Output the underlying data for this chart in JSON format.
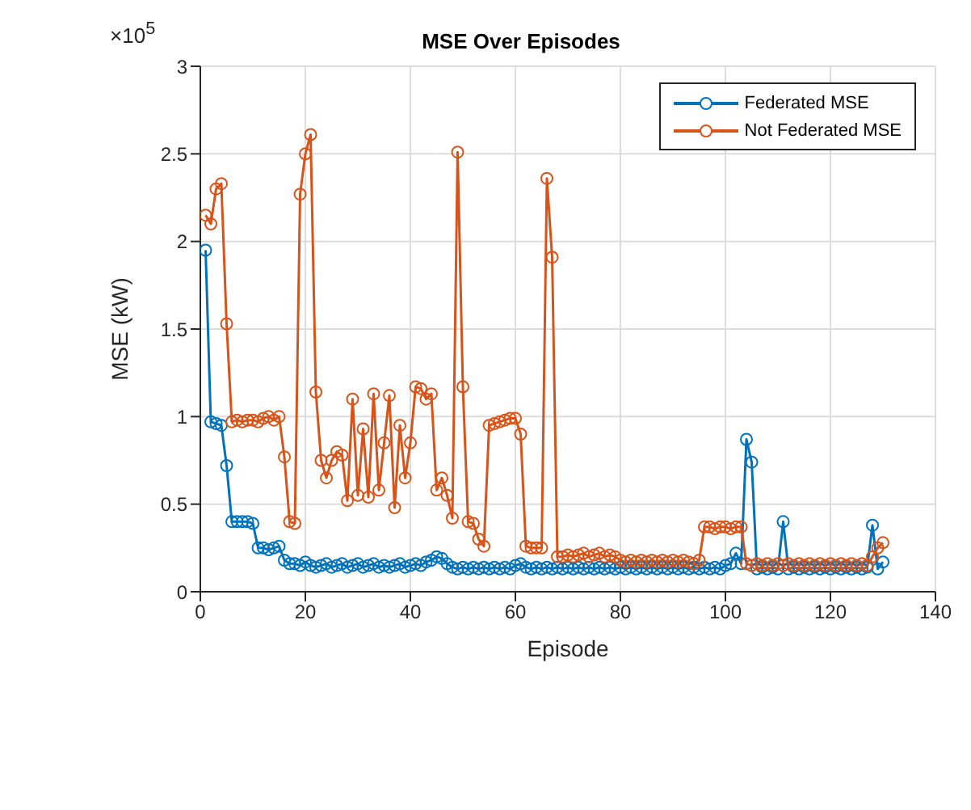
{
  "chart_data": {
    "type": "line",
    "title": "MSE Over Episodes",
    "xlabel": "Episode",
    "ylabel": "MSE (kW)",
    "annotations": [
      "×10$^{5}$"
    ],
    "x": [
      1,
      2,
      3,
      4,
      5,
      6,
      7,
      8,
      9,
      10,
      11,
      12,
      13,
      14,
      15,
      16,
      17,
      18,
      19,
      20,
      21,
      22,
      23,
      24,
      25,
      26,
      27,
      28,
      29,
      30,
      31,
      32,
      33,
      34,
      35,
      36,
      37,
      38,
      39,
      40,
      41,
      42,
      43,
      44,
      45,
      46,
      47,
      48,
      49,
      50,
      51,
      52,
      53,
      54,
      55,
      56,
      57,
      58,
      59,
      60,
      61,
      62,
      63,
      64,
      65,
      66,
      67,
      68,
      69,
      70,
      71,
      72,
      73,
      74,
      75,
      76,
      77,
      78,
      79,
      80,
      81,
      82,
      83,
      84,
      85,
      86,
      87,
      88,
      89,
      90,
      91,
      92,
      93,
      94,
      95,
      96,
      97,
      98,
      99,
      100,
      101,
      102,
      103,
      104,
      105,
      106,
      107,
      108,
      109,
      110,
      111,
      112,
      113,
      114,
      115,
      116,
      117,
      118,
      119,
      120,
      121,
      122,
      123,
      124,
      125,
      126,
      127,
      128,
      129,
      130
    ],
    "series": [
      {
        "name": "Federated MSE",
        "color": "#0072bd",
        "values": [
          1.95,
          0.97,
          0.96,
          0.95,
          0.72,
          0.4,
          0.4,
          0.4,
          0.4,
          0.39,
          0.25,
          0.25,
          0.24,
          0.25,
          0.26,
          0.18,
          0.16,
          0.16,
          0.15,
          0.17,
          0.15,
          0.14,
          0.15,
          0.16,
          0.14,
          0.15,
          0.16,
          0.14,
          0.15,
          0.16,
          0.14,
          0.15,
          0.16,
          0.14,
          0.15,
          0.14,
          0.15,
          0.16,
          0.14,
          0.15,
          0.16,
          0.15,
          0.17,
          0.18,
          0.2,
          0.19,
          0.16,
          0.14,
          0.13,
          0.14,
          0.13,
          0.14,
          0.13,
          0.14,
          0.13,
          0.14,
          0.13,
          0.14,
          0.13,
          0.15,
          0.16,
          0.14,
          0.13,
          0.14,
          0.13,
          0.14,
          0.13,
          0.14,
          0.13,
          0.14,
          0.13,
          0.14,
          0.13,
          0.14,
          0.13,
          0.14,
          0.13,
          0.14,
          0.13,
          0.14,
          0.13,
          0.14,
          0.13,
          0.14,
          0.13,
          0.14,
          0.13,
          0.14,
          0.13,
          0.14,
          0.13,
          0.14,
          0.13,
          0.14,
          0.13,
          0.14,
          0.13,
          0.14,
          0.13,
          0.15,
          0.16,
          0.22,
          0.16,
          0.87,
          0.74,
          0.13,
          0.14,
          0.13,
          0.14,
          0.13,
          0.4,
          0.13,
          0.14,
          0.13,
          0.14,
          0.13,
          0.14,
          0.13,
          0.14,
          0.13,
          0.14,
          0.13,
          0.14,
          0.13,
          0.14,
          0.13,
          0.14,
          0.38,
          0.13,
          0.17
        ]
      },
      {
        "name": "Not Federated MSE",
        "color": "#d95319",
        "values": [
          2.15,
          2.1,
          2.3,
          2.33,
          1.53,
          0.97,
          0.98,
          0.97,
          0.98,
          0.98,
          0.97,
          0.99,
          1.0,
          0.98,
          1.0,
          0.77,
          0.4,
          0.39,
          2.27,
          2.5,
          2.61,
          1.14,
          0.75,
          0.65,
          0.75,
          0.8,
          0.78,
          0.52,
          1.1,
          0.55,
          0.93,
          0.54,
          1.13,
          0.58,
          0.85,
          1.12,
          0.48,
          0.95,
          0.65,
          0.85,
          1.17,
          1.16,
          1.1,
          1.13,
          0.58,
          0.65,
          0.55,
          0.42,
          2.51,
          1.17,
          0.4,
          0.39,
          0.3,
          0.26,
          0.95,
          0.96,
          0.97,
          0.98,
          0.99,
          0.99,
          0.9,
          0.26,
          0.25,
          0.25,
          0.25,
          2.36,
          1.91,
          0.2,
          0.2,
          0.21,
          0.2,
          0.21,
          0.22,
          0.2,
          0.21,
          0.22,
          0.2,
          0.21,
          0.2,
          0.18,
          0.17,
          0.18,
          0.17,
          0.18,
          0.17,
          0.18,
          0.17,
          0.18,
          0.17,
          0.18,
          0.17,
          0.18,
          0.17,
          0.16,
          0.18,
          0.37,
          0.37,
          0.36,
          0.37,
          0.37,
          0.36,
          0.37,
          0.37,
          0.16,
          0.15,
          0.16,
          0.15,
          0.16,
          0.15,
          0.16,
          0.15,
          0.16,
          0.15,
          0.16,
          0.15,
          0.16,
          0.15,
          0.16,
          0.15,
          0.16,
          0.15,
          0.16,
          0.15,
          0.16,
          0.15,
          0.16,
          0.15,
          0.2,
          0.25,
          0.28
        ]
      }
    ],
    "xlim": [
      0,
      140
    ],
    "xticks": [
      0,
      20,
      40,
      60,
      80,
      100,
      120,
      140
    ],
    "ylim": [
      0,
      3
    ],
    "yticks": [
      0,
      0.5,
      1,
      1.5,
      2,
      2.5,
      3
    ],
    "grid": true,
    "legend": "top right",
    "marker": "circle",
    "line_style": "solid"
  }
}
